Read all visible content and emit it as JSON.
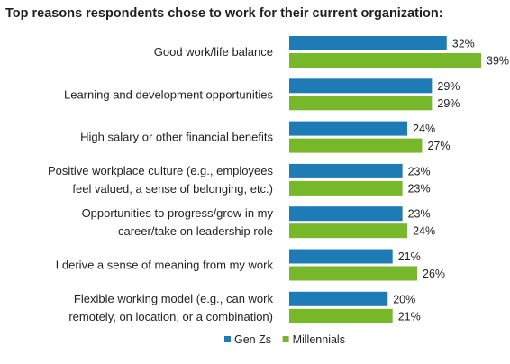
{
  "chart_data": {
    "type": "bar",
    "orientation": "horizontal",
    "title": "Top reasons respondents chose to work for their current organization:",
    "categories": [
      [
        "Good work/life balance"
      ],
      [
        "Learning and development opportunities"
      ],
      [
        "High salary or other financial benefits"
      ],
      [
        "Positive workplace culture (e.g., employees",
        "feel valued, a sense of belonging, etc.)"
      ],
      [
        "Opportunities to progress/grow in my",
        "career/take on leadership role"
      ],
      [
        "I derive a sense of meaning from my work"
      ],
      [
        "Flexible working model (e.g., can work",
        "remotely, on location, or a combination)"
      ]
    ],
    "series": [
      {
        "name": "Gen Zs",
        "color": "#1f7bb5",
        "values": [
          32,
          29,
          24,
          23,
          23,
          21,
          20
        ]
      },
      {
        "name": "Millennials",
        "color": "#77b82a",
        "values": [
          39,
          29,
          27,
          23,
          24,
          26,
          21
        ]
      }
    ],
    "value_suffix": "%",
    "xlim": [
      0,
      39
    ],
    "legend_position": "bottom",
    "grid": false
  }
}
